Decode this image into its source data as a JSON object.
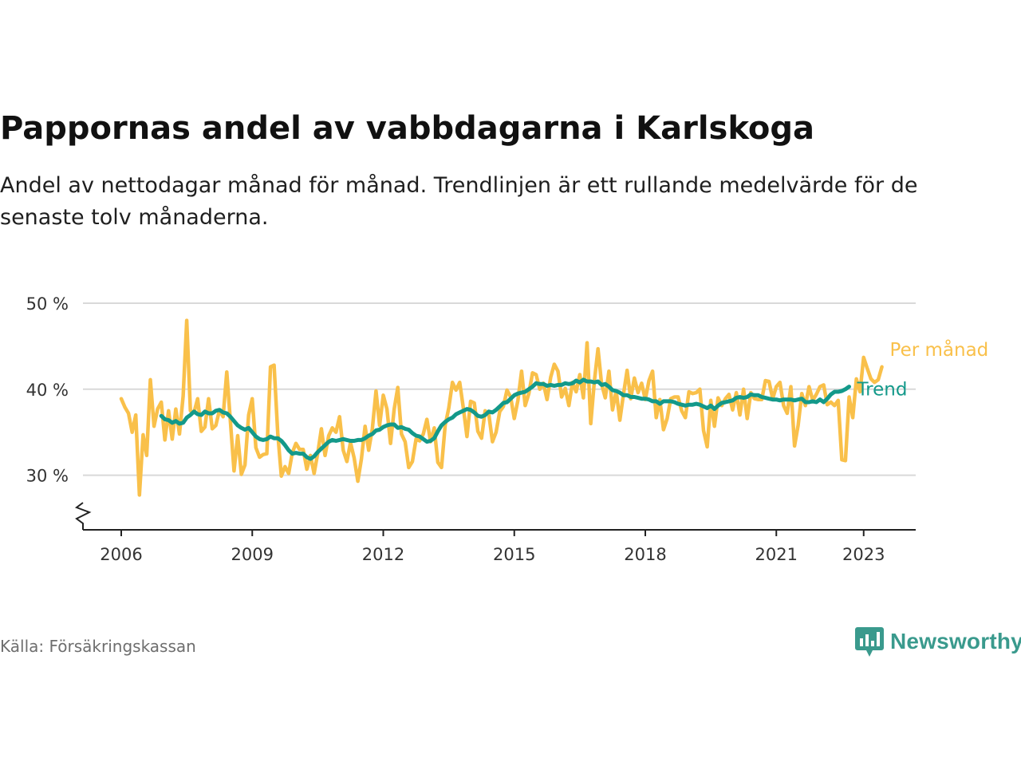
{
  "header": {
    "title": "Pappornas andel av vabbdagarna i Karlskoga",
    "subtitle": "Andel av nettodagar månad för månad. Trendlinjen är ett rullande medelvärde för de senaste tolv månaderna."
  },
  "footer": {
    "source": "Källa: Försäkringskassan",
    "brand": "Newsworthy",
    "brand_icon": "bar-chart-speech-bubble-icon"
  },
  "colors": {
    "monthly": "#f9c04a",
    "trend": "#13998a",
    "grid": "#d9d9d9",
    "axis": "#222222",
    "brand": "#3a9a8d"
  },
  "chart_data": {
    "type": "line",
    "title": "Pappornas andel av vabbdagarna i Karlskoga",
    "xlabel": "",
    "ylabel": "",
    "ylim": [
      24,
      50
    ],
    "y_ticks": [
      30,
      40,
      50
    ],
    "y_tick_labels": [
      "30 %",
      "40 %",
      "50 %"
    ],
    "y_axis_break": true,
    "x_ticks": [
      2006,
      2009,
      2012,
      2015,
      2018,
      2021,
      2023
    ],
    "x_tick_labels": [
      "2006",
      "2009",
      "2012",
      "2015",
      "2018",
      "2021",
      "2023"
    ],
    "xlim": [
      2005.1,
      2024.2
    ],
    "grid": true,
    "legend": "direct labels at line ends",
    "series": [
      {
        "name": "Per månad",
        "x_start": 2006.0,
        "step": 0.0833333,
        "values": [
          38.9,
          37.9,
          37.2,
          35.0,
          37.0,
          27.7,
          34.7,
          32.3,
          41.1,
          35.7,
          37.7,
          38.5,
          34.1,
          37.5,
          34.2,
          37.7,
          34.8,
          39.2,
          48.0,
          37.5,
          37.3,
          38.9,
          35.1,
          35.6,
          38.9,
          35.4,
          35.8,
          37.6,
          36.8,
          42.0,
          36.2,
          30.5,
          34.6,
          30.1,
          31.2,
          37.0,
          38.9,
          33.2,
          32.1,
          32.4,
          32.5,
          42.6,
          42.8,
          34.9,
          29.9,
          31.0,
          30.2,
          32.6,
          33.7,
          33.0,
          33.0,
          30.7,
          32.3,
          30.2,
          32.6,
          35.4,
          32.3,
          34.6,
          35.5,
          35.0,
          36.8,
          32.9,
          31.6,
          33.8,
          32.0,
          29.3,
          31.9,
          35.7,
          32.9,
          35.4,
          39.8,
          35.8,
          39.3,
          37.7,
          33.7,
          37.7,
          40.2,
          34.8,
          33.9,
          30.9,
          31.6,
          34.2,
          34.0,
          34.8,
          36.5,
          33.9,
          35.5,
          31.5,
          30.9,
          35.8,
          37.8,
          40.8,
          39.9,
          40.8,
          37.8,
          34.5,
          38.6,
          38.4,
          35.1,
          34.3,
          37.5,
          37.1,
          33.9,
          35.0,
          37.4,
          38.0,
          39.9,
          39.1,
          36.6,
          38.7,
          42.1,
          38.1,
          39.5,
          41.9,
          41.7,
          40.0,
          40.7,
          38.8,
          41.4,
          42.9,
          42.1,
          39.1,
          40.1,
          38.1,
          40.8,
          39.7,
          41.7,
          39.0,
          45.4,
          36.0,
          40.9,
          44.7,
          40.6,
          39.0,
          42.1,
          37.6,
          39.8,
          36.4,
          39.4,
          42.2,
          38.9,
          41.3,
          39.6,
          40.7,
          38.8,
          41.0,
          42.1,
          36.7,
          38.8,
          35.3,
          36.6,
          38.9,
          39.1,
          39.1,
          37.5,
          36.7,
          39.7,
          39.5,
          39.6,
          40.0,
          35.2,
          33.3,
          38.7,
          35.7,
          39.0,
          38.1,
          38.9,
          39.4,
          37.6,
          39.6,
          37.0,
          40.0,
          36.6,
          39.6,
          38.9,
          38.8,
          38.8,
          41.0,
          40.9,
          38.9,
          40.3,
          40.8,
          38.1,
          37.2,
          40.3,
          33.4,
          35.8,
          39.5,
          38.1,
          40.3,
          38.7,
          39.4,
          40.3,
          40.5,
          38.2,
          38.5,
          38.1,
          38.7,
          31.8,
          31.7,
          39.1,
          36.7,
          41.2,
          39.7,
          43.7,
          42.4,
          41.2,
          40.8,
          41.1,
          42.6
        ]
      },
      {
        "name": "Trend",
        "x_start": 2006.9167,
        "step": 0.0833333,
        "values": [
          36.9,
          36.5,
          36.4,
          36.1,
          36.3,
          36.0,
          36.1,
          36.7,
          37.0,
          37.4,
          37.1,
          37.0,
          37.4,
          37.2,
          37.2,
          37.5,
          37.6,
          37.3,
          37.2,
          36.8,
          36.3,
          35.8,
          35.5,
          35.3,
          35.5,
          35.0,
          34.5,
          34.2,
          34.1,
          34.2,
          34.5,
          34.3,
          34.3,
          34.0,
          33.5,
          32.9,
          32.5,
          32.6,
          32.5,
          32.5,
          32.1,
          31.9,
          32.2,
          32.7,
          33.1,
          33.5,
          33.9,
          34.1,
          34.0,
          34.1,
          34.2,
          34.1,
          34.0,
          34.0,
          34.1,
          34.1,
          34.3,
          34.6,
          34.8,
          35.2,
          35.3,
          35.6,
          35.8,
          35.9,
          35.9,
          35.5,
          35.6,
          35.4,
          35.3,
          34.9,
          34.6,
          34.5,
          34.2,
          33.9,
          34.0,
          34.3,
          35.1,
          35.8,
          36.2,
          36.5,
          36.7,
          37.1,
          37.3,
          37.5,
          37.7,
          37.6,
          37.3,
          36.9,
          36.8,
          37.0,
          37.4,
          37.3,
          37.6,
          38.0,
          38.4,
          38.5,
          38.9,
          39.3,
          39.5,
          39.6,
          39.7,
          40.0,
          40.3,
          40.7,
          40.6,
          40.6,
          40.4,
          40.5,
          40.4,
          40.5,
          40.5,
          40.7,
          40.6,
          40.7,
          41.0,
          40.8,
          41.1,
          40.9,
          40.9,
          40.8,
          40.9,
          40.5,
          40.6,
          40.3,
          39.9,
          39.8,
          39.6,
          39.3,
          39.3,
          39.1,
          39.1,
          39.0,
          38.9,
          38.9,
          38.8,
          38.6,
          38.6,
          38.3,
          38.6,
          38.6,
          38.6,
          38.5,
          38.3,
          38.2,
          38.1,
          38.2,
          38.2,
          38.3,
          38.2,
          38.0,
          37.8,
          38.1,
          37.7,
          38.1,
          38.4,
          38.5,
          38.6,
          38.7,
          39.0,
          39.1,
          39.0,
          39.1,
          39.4,
          39.3,
          39.3,
          39.1,
          39.0,
          38.9,
          38.8,
          38.8,
          38.7,
          38.8,
          38.8,
          38.8,
          38.7,
          38.8,
          38.9,
          38.5,
          38.5,
          38.6,
          38.5,
          38.8,
          38.5,
          38.9,
          39.4,
          39.7,
          39.7,
          39.8,
          40.0,
          40.3
        ]
      }
    ]
  }
}
